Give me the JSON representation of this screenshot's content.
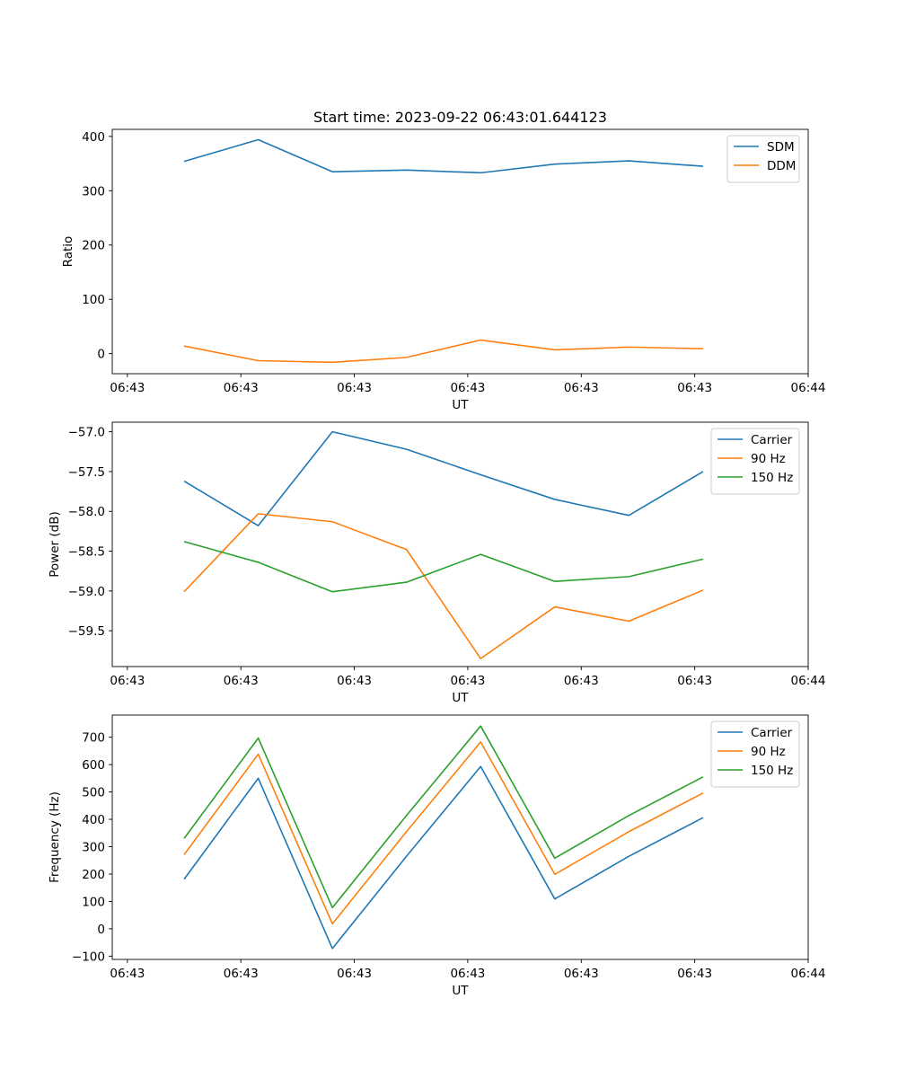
{
  "chart_data": [
    {
      "type": "line",
      "title": "Start time: 2023-09-22 06:43:01.644123",
      "xlabel": "UT",
      "ylabel": "Ratio",
      "xlim": [
        -0.2,
        9
      ],
      "ylim": [
        -37,
        413
      ],
      "x_ticks": [
        0,
        1.5,
        3,
        4.5,
        6,
        7.5,
        9
      ],
      "x_tick_labels": [
        "06:43",
        "06:43",
        "06:43",
        "06:43",
        "06:43",
        "06:43",
        "06:44"
      ],
      "y_ticks": [
        0,
        100,
        200,
        300,
        400
      ],
      "y_tick_labels": [
        "0",
        "100",
        "200",
        "300",
        "400"
      ],
      "x": [
        0.75,
        1.73,
        2.71,
        3.69,
        4.67,
        5.65,
        6.63,
        7.61
      ],
      "series": [
        {
          "name": "SDM",
          "color": "#1f77b4",
          "values": [
            354,
            394,
            335,
            338,
            333,
            349,
            355,
            345
          ]
        },
        {
          "name": "DDM",
          "color": "#ff7f0e",
          "values": [
            14,
            -13,
            -16,
            -7,
            25,
            7,
            12,
            9
          ]
        }
      ],
      "legend": "top-right"
    },
    {
      "type": "line",
      "title": "",
      "xlabel": "UT",
      "ylabel": "Power (dB)",
      "xlim": [
        -0.2,
        9
      ],
      "ylim": [
        -59.95,
        -56.88
      ],
      "x_ticks": [
        0,
        1.5,
        3,
        4.5,
        6,
        7.5,
        9
      ],
      "x_tick_labels": [
        "06:43",
        "06:43",
        "06:43",
        "06:43",
        "06:43",
        "06:43",
        "06:44"
      ],
      "y_ticks": [
        -59.5,
        -59.0,
        -58.5,
        -58.0,
        -57.5,
        -57.0
      ],
      "y_tick_labels": [
        "−59.5",
        "−59.0",
        "−58.5",
        "−58.0",
        "−57.5",
        "−57.0"
      ],
      "x": [
        0.75,
        1.73,
        2.71,
        3.69,
        4.67,
        5.65,
        6.63,
        7.61
      ],
      "series": [
        {
          "name": "Carrier",
          "color": "#1f77b4",
          "values": [
            -57.62,
            -58.18,
            -57.0,
            -57.22,
            -57.54,
            -57.85,
            -58.05,
            -57.5
          ]
        },
        {
          "name": "90 Hz",
          "color": "#ff7f0e",
          "values": [
            -59.01,
            -58.03,
            -58.13,
            -58.48,
            -59.85,
            -59.2,
            -59.38,
            -58.99
          ]
        },
        {
          "name": "150 Hz",
          "color": "#2ca02c",
          "values": [
            -58.38,
            -58.64,
            -59.01,
            -58.89,
            -58.54,
            -58.88,
            -58.82,
            -58.6
          ]
        }
      ],
      "legend": "top-right"
    },
    {
      "type": "line",
      "title": "",
      "xlabel": "UT",
      "ylabel": "Frequency (Hz)",
      "xlim": [
        -0.2,
        9
      ],
      "ylim": [
        -112,
        781
      ],
      "x_ticks": [
        0,
        1.5,
        3,
        4.5,
        6,
        7.5,
        9
      ],
      "x_tick_labels": [
        "06:43",
        "06:43",
        "06:43",
        "06:43",
        "06:43",
        "06:43",
        "06:44"
      ],
      "y_ticks": [
        -100,
        0,
        100,
        200,
        300,
        400,
        500,
        600,
        700
      ],
      "y_tick_labels": [
        "−100",
        "0",
        "100",
        "200",
        "300",
        "400",
        "500",
        "600",
        "700"
      ],
      "x": [
        0.75,
        1.73,
        2.71,
        3.69,
        4.67,
        5.65,
        6.63,
        7.61
      ],
      "series": [
        {
          "name": "Carrier",
          "color": "#1f77b4",
          "values": [
            181,
            550,
            -72,
            265,
            593,
            109,
            265,
            406
          ]
        },
        {
          "name": "90 Hz",
          "color": "#ff7f0e",
          "values": [
            271,
            638,
            18,
            355,
            683,
            199,
            355,
            496
          ]
        },
        {
          "name": "150 Hz",
          "color": "#2ca02c",
          "values": [
            330,
            697,
            77,
            414,
            741,
            258,
            414,
            555
          ]
        }
      ],
      "legend": "top-right"
    }
  ]
}
